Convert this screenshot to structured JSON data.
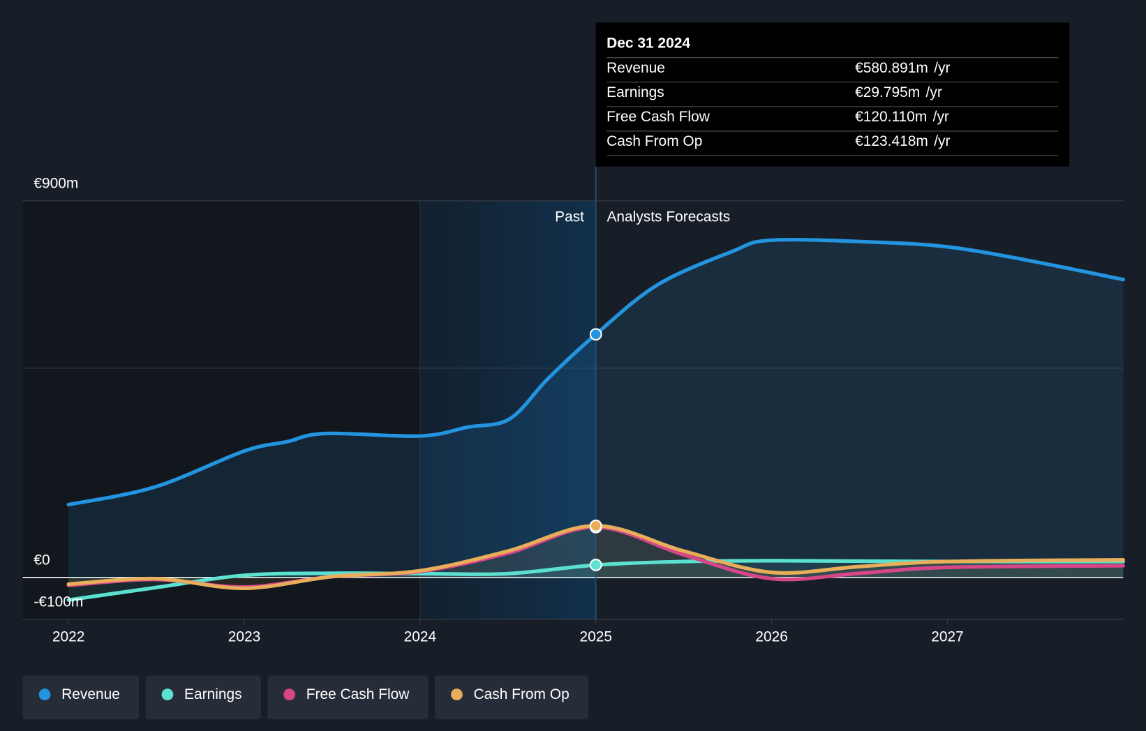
{
  "chart_data": {
    "type": "line",
    "x_start": 2021.74,
    "xlim": [
      2021.74,
      2028
    ],
    "xticks": [
      2022,
      2023,
      2024,
      2025,
      2026,
      2027
    ],
    "ylim": [
      -100,
      900
    ],
    "yticks": [
      {
        "value": 900,
        "label": "€900m"
      },
      {
        "value": 0,
        "label": "€0"
      },
      {
        "value": -100,
        "label": "-€100m"
      }
    ],
    "ygrid": [
      500
    ],
    "highlight_start": 2024,
    "divider_x": 2025,
    "past_label": "Past",
    "forecast_label": "Analysts Forecasts",
    "tooltip_title": "Dec 31 2024",
    "tooltip_unit": "/yr",
    "legend": "bottom-left",
    "series": [
      {
        "name": "Revenue",
        "color": "#2394df",
        "fill": true,
        "x": [
          2022,
          2022.49,
          2023,
          2023.24,
          2023.46,
          2024,
          2024.27,
          2024.51,
          2024.73,
          2025,
          2025.35,
          2025.77,
          2026,
          2026.6,
          2027,
          2027.43,
          2028
        ],
        "values": [
          174,
          216,
          302,
          324,
          344,
          338,
          359,
          379,
          476,
          580.891,
          699,
          778,
          806,
          801,
          790,
          760,
          712
        ],
        "value_labels": [
          null,
          null,
          null,
          null,
          null,
          null,
          null,
          null,
          null,
          "€580.891m",
          null,
          null,
          null,
          null,
          null,
          null,
          null
        ]
      },
      {
        "name": "Earnings",
        "color": "#5ce0cf",
        "fill": true,
        "x": [
          2022,
          2022.5,
          2023,
          2023.5,
          2024,
          2024.5,
          2025,
          2025.5,
          2026,
          2027,
          2028
        ],
        "values": [
          -54,
          -24,
          5,
          10,
          9,
          9,
          29.795,
          38,
          40,
          38,
          38
        ],
        "value_labels": [
          null,
          null,
          null,
          null,
          null,
          null,
          "€29.795m",
          null,
          null,
          null,
          null
        ]
      },
      {
        "name": "Free Cash Flow",
        "color": "#d64688",
        "fill": false,
        "x": [
          2022,
          2022.5,
          2023,
          2023.5,
          2024,
          2024.5,
          2025,
          2025.5,
          2026,
          2026.5,
          2027,
          2028
        ],
        "values": [
          -19,
          -5,
          -23,
          2,
          14,
          58,
          120.11,
          54,
          -3,
          10,
          24,
          28
        ],
        "value_labels": [
          null,
          null,
          null,
          null,
          null,
          null,
          "€120.110m",
          null,
          null,
          null,
          null,
          null
        ]
      },
      {
        "name": "Cash From Op",
        "color": "#e8ae5a",
        "fill": true,
        "x": [
          2022,
          2022.5,
          2023,
          2023.5,
          2024,
          2024.5,
          2025,
          2025.5,
          2026,
          2026.5,
          2027,
          2028
        ],
        "values": [
          -16,
          -3,
          -26,
          2,
          16,
          63,
          123.418,
          63,
          12,
          26,
          38,
          42
        ],
        "value_labels": [
          null,
          null,
          null,
          null,
          null,
          null,
          "€123.418m",
          null,
          null,
          null,
          null,
          null
        ]
      }
    ]
  }
}
